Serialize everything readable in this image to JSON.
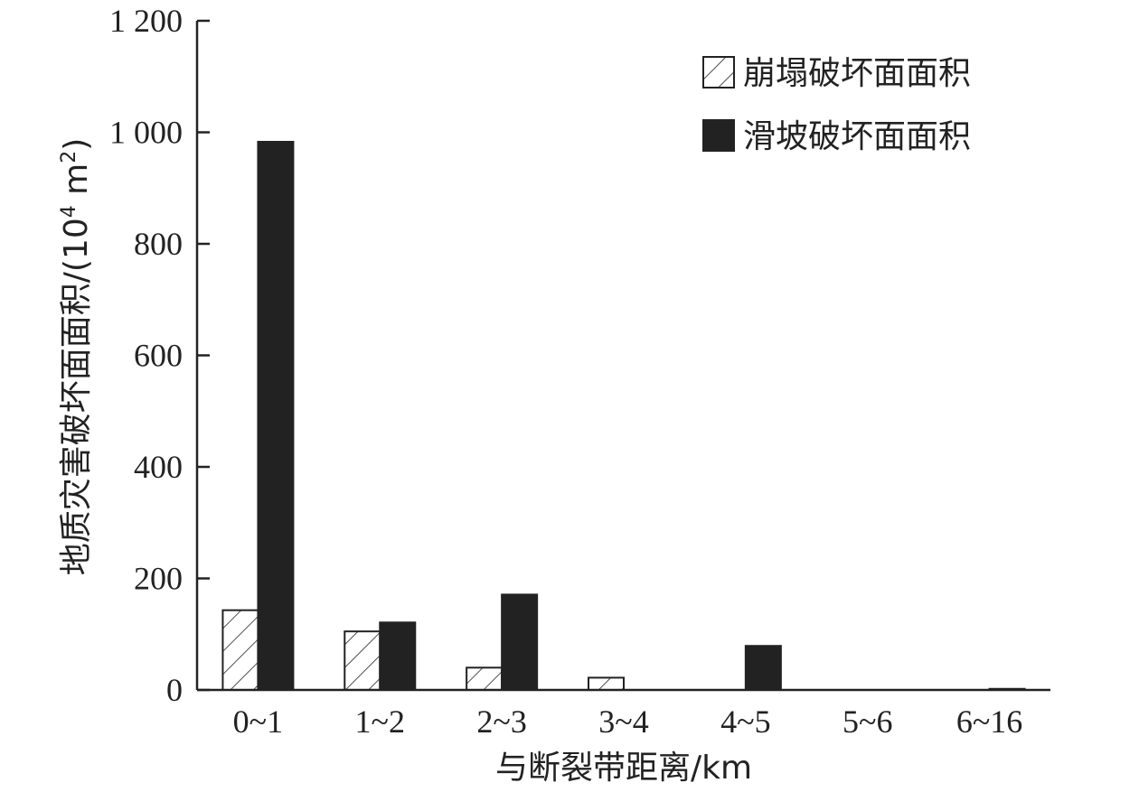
{
  "chart_data": {
    "type": "bar",
    "xlabel": "与断裂带距离/km",
    "ylabel_main": "地质灾害破坏面面积/(10",
    "ylabel_sup": "4",
    "ylabel_mid": " m",
    "ylabel_sup2": "2",
    "ylabel_end": ")",
    "ylim": [
      0,
      1200
    ],
    "yticks": [
      0,
      200,
      400,
      600,
      800,
      1000,
      1200
    ],
    "ytick_labels": [
      "0",
      "200",
      "400",
      "600",
      "800",
      "1 000",
      "1 200"
    ],
    "categories": [
      "0~1",
      "1~2",
      "2~3",
      "3~4",
      "4~5",
      "5~6",
      "6~16"
    ],
    "series": [
      {
        "name": "崩塌破坏面面积",
        "pattern": "hatched",
        "color": "#222222",
        "values": [
          143,
          105,
          40,
          22,
          0,
          0,
          0
        ]
      },
      {
        "name": "滑坡破坏面面积",
        "pattern": "solid",
        "color": "#222222",
        "values": [
          983,
          121,
          171,
          0,
          79,
          0,
          2
        ]
      }
    ],
    "legend_position": "top-right",
    "grid": false
  }
}
